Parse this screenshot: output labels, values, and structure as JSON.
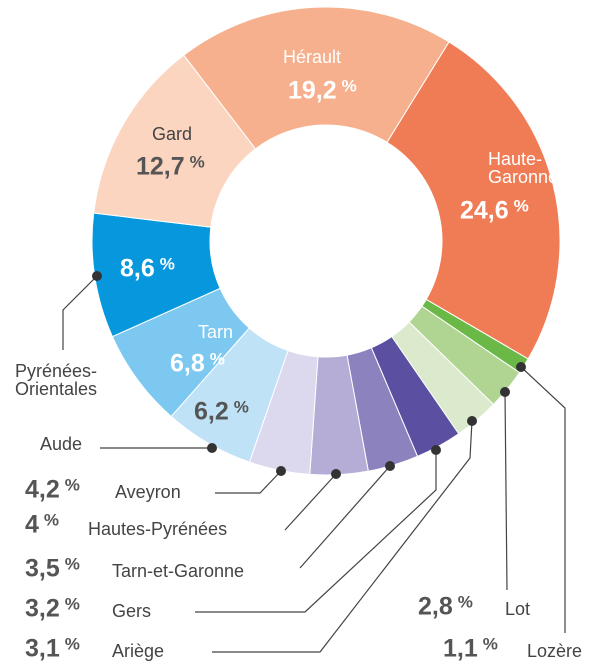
{
  "chart_data": {
    "type": "donut",
    "categories": [
      "Haute-Garonne",
      "Lozère",
      "Lot",
      "Ariège",
      "Gers",
      "Tarn-et-Garonne",
      "Hautes-Pyrénées",
      "Aveyron",
      "Aude",
      "Tarn",
      "Pyrénées-Orientales",
      "Gard",
      "Hérault"
    ],
    "values": [
      24.6,
      1.1,
      2.8,
      3.1,
      3.2,
      3.5,
      4,
      4.2,
      6.2,
      6.8,
      8.6,
      12.7,
      19.2
    ],
    "value_labels": [
      "24,6",
      "1,1",
      "2,8",
      "3,1",
      "3,2",
      "3,5",
      "4",
      "4,2",
      "6,2",
      "6,8",
      "8,6",
      "12,7",
      "19,2"
    ],
    "unit": "%",
    "colors": [
      "#f07c55",
      "#6ab845",
      "#b0d492",
      "#dbe9cc",
      "#5a4fa0",
      "#8c83be",
      "#b5add6",
      "#dcd8ee",
      "#c0e2f7",
      "#7cc8f0",
      "#0797dd",
      "#fbd5c0",
      "#f6b08e"
    ]
  }
}
